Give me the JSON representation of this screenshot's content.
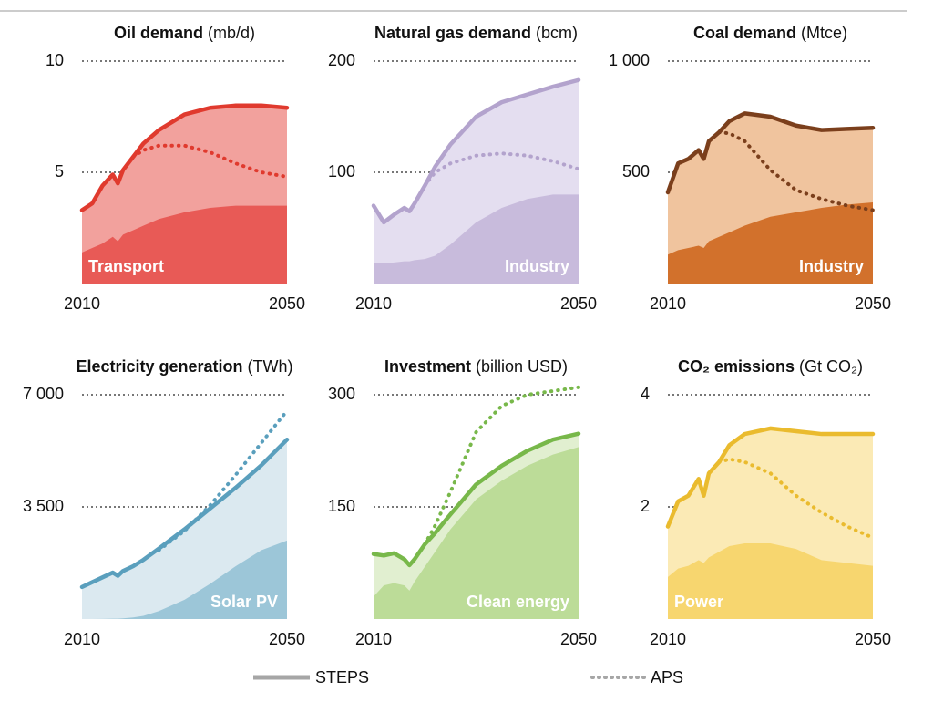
{
  "chart_data": [
    {
      "type": "area",
      "title": "Oil demand",
      "unit": "(mb/d)",
      "x": [
        2010,
        2012,
        2014,
        2016,
        2017,
        2018,
        2020,
        2022,
        2025,
        2030,
        2035,
        2040,
        2045,
        2050
      ],
      "xlim": [
        2010,
        2050
      ],
      "xticks": [
        2010,
        2050
      ],
      "ylim": [
        0,
        10
      ],
      "yticks": [
        5,
        10
      ],
      "label_position": "left",
      "series": [
        {
          "name": "STEPS",
          "style": "solid",
          "color": "#e03a2e",
          "fill": "#f2a19d",
          "values": [
            3.3,
            3.6,
            4.4,
            4.9,
            4.5,
            5.1,
            5.7,
            6.3,
            6.9,
            7.6,
            7.9,
            8.0,
            8.0,
            7.9
          ]
        },
        {
          "name": "APS",
          "style": "dotted",
          "color": "#e03a2e",
          "values": [
            null,
            null,
            null,
            null,
            null,
            null,
            5.7,
            6.0,
            6.2,
            6.2,
            5.9,
            5.4,
            5.0,
            4.8
          ]
        },
        {
          "name": "Transport",
          "style": "area",
          "color": "#e85a56",
          "values": [
            1.4,
            1.6,
            1.8,
            2.1,
            1.9,
            2.2,
            2.4,
            2.6,
            2.9,
            3.2,
            3.4,
            3.5,
            3.5,
            3.5
          ]
        }
      ]
    },
    {
      "type": "area",
      "title": "Natural gas demand",
      "unit": "(bcm)",
      "x": [
        2010,
        2012,
        2014,
        2016,
        2017,
        2018,
        2020,
        2022,
        2025,
        2030,
        2035,
        2040,
        2045,
        2050
      ],
      "xlim": [
        2010,
        2050
      ],
      "xticks": [
        2010,
        2050
      ],
      "ylim": [
        0,
        200
      ],
      "yticks": [
        100,
        200
      ],
      "label_position": "right",
      "series": [
        {
          "name": "STEPS",
          "style": "solid",
          "color": "#b3a3cd",
          "fill": "#e4def0",
          "values": [
            70,
            55,
            62,
            68,
            65,
            72,
            88,
            105,
            125,
            150,
            163,
            170,
            177,
            183
          ]
        },
        {
          "name": "APS",
          "style": "dotted",
          "color": "#b3a3cd",
          "values": [
            null,
            null,
            null,
            null,
            null,
            null,
            88,
            100,
            108,
            115,
            117,
            115,
            110,
            103
          ]
        },
        {
          "name": "Industry",
          "style": "area",
          "color": "#c8bbdc",
          "values": [
            18,
            18,
            19,
            20,
            20,
            21,
            22,
            25,
            35,
            55,
            68,
            76,
            80,
            80
          ]
        }
      ]
    },
    {
      "type": "area",
      "title": "Coal demand",
      "unit": "(Mtce)",
      "x": [
        2010,
        2012,
        2014,
        2016,
        2017,
        2018,
        2020,
        2022,
        2025,
        2030,
        2035,
        2040,
        2045,
        2050
      ],
      "xlim": [
        2010,
        2050
      ],
      "xticks": [
        2010,
        2050
      ],
      "ylim": [
        0,
        1000
      ],
      "yticks": [
        500,
        {
          "value": 1000,
          "label": "1 000"
        }
      ],
      "label_position": "right",
      "series": [
        {
          "name": "STEPS",
          "style": "solid",
          "color": "#7b3f1c",
          "fill": "#f0c49e",
          "values": [
            410,
            540,
            560,
            600,
            560,
            640,
            680,
            730,
            765,
            750,
            710,
            690,
            695,
            700
          ]
        },
        {
          "name": "APS",
          "style": "dotted",
          "color": "#7b3f1c",
          "values": [
            null,
            null,
            null,
            null,
            null,
            null,
            680,
            675,
            640,
            510,
            420,
            380,
            350,
            330
          ]
        },
        {
          "name": "Industry",
          "style": "area",
          "color": "#d2712c",
          "values": [
            130,
            150,
            160,
            170,
            160,
            190,
            210,
            230,
            260,
            300,
            320,
            340,
            355,
            365
          ]
        }
      ]
    },
    {
      "type": "area",
      "title": "Electricity generation",
      "unit": "(TWh)",
      "x": [
        2010,
        2012,
        2014,
        2016,
        2017,
        2018,
        2020,
        2022,
        2025,
        2030,
        2035,
        2040,
        2045,
        2050
      ],
      "xlim": [
        2010,
        2050
      ],
      "xticks": [
        2010,
        2050
      ],
      "ylim": [
        0,
        7000
      ],
      "yticks": [
        {
          "value": 3500,
          "label": "3 500"
        },
        {
          "value": 7000,
          "label": "7 000"
        }
      ],
      "label_position": "right",
      "series": [
        {
          "name": "STEPS",
          "style": "solid",
          "color": "#5a9fbd",
          "fill": "#dbe9f0",
          "values": [
            1000,
            1150,
            1300,
            1450,
            1350,
            1500,
            1650,
            1850,
            2200,
            2800,
            3450,
            4100,
            4800,
            5600
          ]
        },
        {
          "name": "APS",
          "style": "dotted",
          "color": "#5a9fbd",
          "values": [
            null,
            null,
            null,
            null,
            null,
            null,
            null,
            null,
            2150,
            2750,
            3550,
            4500,
            5500,
            6500
          ]
        },
        {
          "name": "Solar PV",
          "style": "area",
          "color": "#9cc6d8",
          "values": [
            0,
            0,
            5,
            10,
            12,
            20,
            50,
            100,
            250,
            600,
            1100,
            1650,
            2150,
            2450
          ]
        }
      ]
    },
    {
      "type": "area",
      "title": "Investment",
      "unit": "(billion USD)",
      "x": [
        2010,
        2012,
        2014,
        2016,
        2017,
        2018,
        2020,
        2022,
        2025,
        2030,
        2035,
        2040,
        2045,
        2050
      ],
      "xlim": [
        2010,
        2050
      ],
      "xticks": [
        2010,
        2050
      ],
      "ylim": [
        0,
        300
      ],
      "yticks": [
        150,
        300
      ],
      "label_position": "right",
      "series": [
        {
          "name": "STEPS",
          "style": "solid",
          "color": "#78b84a",
          "fill": "#e1efd0",
          "values": [
            87,
            85,
            88,
            80,
            72,
            80,
            100,
            115,
            140,
            180,
            205,
            225,
            240,
            248
          ]
        },
        {
          "name": "APS",
          "style": "dotted",
          "color": "#78b84a",
          "values": [
            null,
            null,
            null,
            null,
            null,
            null,
            100,
            125,
            170,
            250,
            285,
            300,
            305,
            310
          ]
        },
        {
          "name": "Clean energy",
          "style": "area",
          "color": "#bcdc98",
          "values": [
            30,
            45,
            48,
            45,
            38,
            50,
            70,
            90,
            120,
            160,
            185,
            205,
            220,
            230
          ]
        }
      ]
    },
    {
      "type": "area",
      "title": "CO₂ emissions",
      "unit": "(Gt CO₂)",
      "x": [
        2010,
        2012,
        2014,
        2016,
        2017,
        2018,
        2020,
        2022,
        2025,
        2030,
        2035,
        2040,
        2045,
        2050
      ],
      "xlim": [
        2010,
        2050
      ],
      "xticks": [
        2010,
        2050
      ],
      "ylim": [
        0,
        4
      ],
      "yticks": [
        2,
        4
      ],
      "label_position": "left",
      "series": [
        {
          "name": "STEPS",
          "style": "solid",
          "color": "#eabb2e",
          "fill": "#fbeab5",
          "values": [
            1.65,
            2.1,
            2.2,
            2.5,
            2.2,
            2.6,
            2.8,
            3.1,
            3.3,
            3.4,
            3.35,
            3.3,
            3.3,
            3.3
          ]
        },
        {
          "name": "APS",
          "style": "dotted",
          "color": "#eabb2e",
          "values": [
            null,
            null,
            null,
            null,
            null,
            null,
            2.8,
            2.85,
            2.8,
            2.6,
            2.2,
            1.9,
            1.65,
            1.45
          ]
        },
        {
          "name": "Power",
          "style": "area",
          "color": "#f7d66f",
          "values": [
            0.75,
            0.9,
            0.95,
            1.05,
            1.0,
            1.1,
            1.2,
            1.3,
            1.35,
            1.35,
            1.25,
            1.05,
            1.0,
            0.95
          ]
        }
      ]
    }
  ]
}
